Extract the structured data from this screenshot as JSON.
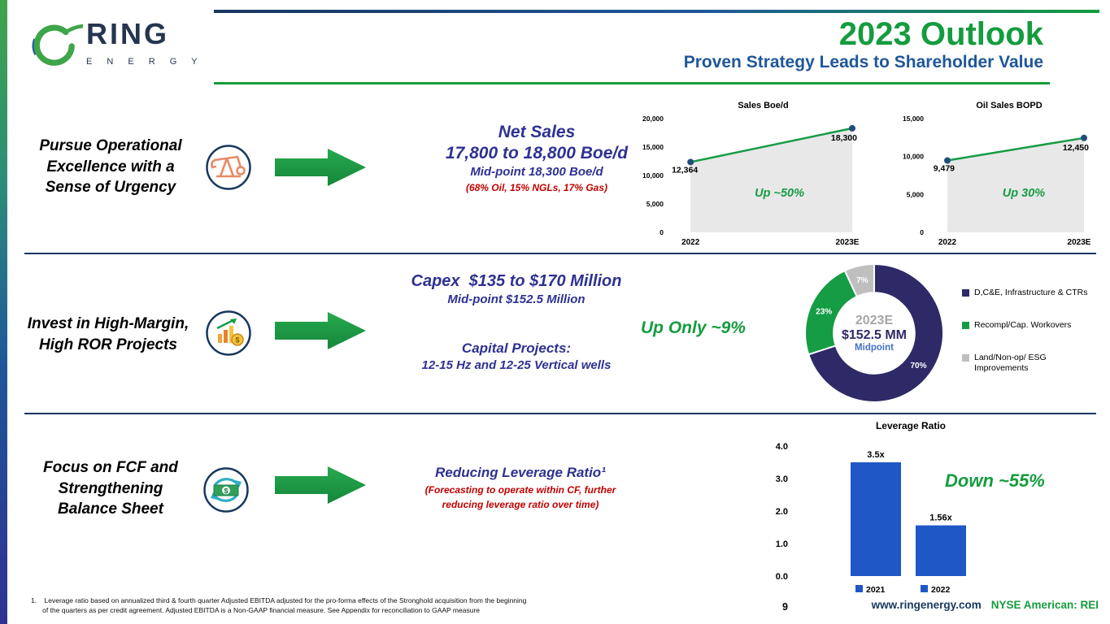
{
  "header": {
    "logo_name": "RING",
    "logo_sub": "E N E R G Y",
    "title": "2023 Outlook",
    "subtitle": "Proven Strategy Leads to Shareholder Value"
  },
  "row1": {
    "label": "Pursue Operational\nExcellence with a\nSense of Urgency",
    "heading1": "Net Sales",
    "heading2": "17,800 to 18,800 Boe/d",
    "sub1": "Mid-point 18,300 Boe/d",
    "sub2": "(68% Oil, 15% NGLs, 17% Gas)"
  },
  "row2": {
    "label": "Invest in High-Margin,\nHigh ROR Projects",
    "heading1": "Capex  $135 to $170 Million",
    "sub1": "Mid-point $152.5 Million",
    "heading2": "Capital Projects:",
    "sub2": "12-15 Hz and 12-25 Vertical wells",
    "annotation": "Up Only ~9%"
  },
  "row3": {
    "label": "Focus on FCF and\nStrengthening\nBalance Sheet",
    "heading1": "Reducing Leverage Ratio¹",
    "sub1": "(Forecasting to operate within CF, further\nreducing leverage ratio over time)",
    "annotation": "Down ~55%"
  },
  "footer": {
    "footnote": "1.    Leverage ratio based on annualized third & fourth quarter Adjusted EBITDA adjusted for the pro-forma effects of the Stronghold acquisition from the beginning\n      of the quarters as per credit agreement. Adjusted EBITDA is a Non-GAAP financial measure. See Appendix for reconciliation to GAAP measure",
    "page_number": "9",
    "website": "www.ringenergy.com",
    "ticker": "NYSE American: REI"
  },
  "colors": {
    "accent_green": "#149C3E",
    "navy": "#17375E",
    "heading_blue": "#2E3192",
    "subtitle_blue": "#1F5799",
    "red": "#C00000"
  },
  "chart_data": [
    {
      "type": "area",
      "title": "Sales Boe/d",
      "categories": [
        "2022",
        "2023E"
      ],
      "values": [
        12364,
        18300
      ],
      "point_labels": [
        "12,364",
        "18,300"
      ],
      "ylim": [
        0,
        20000
      ],
      "yticks": [
        0,
        5000,
        10000,
        15000,
        20000
      ],
      "ytick_labels": [
        "0",
        "5,000",
        "10,000",
        "15,000",
        "20,000"
      ],
      "annotation": "Up ~50%",
      "line_color": "#169C45",
      "marker_color": "#1F4E79",
      "fill_color": "#E8E8E8",
      "grid": false,
      "legend_position": "none"
    },
    {
      "type": "area",
      "title": "Oil Sales BOPD",
      "categories": [
        "2022",
        "2023E"
      ],
      "values": [
        9479,
        12450
      ],
      "point_labels": [
        "9,479",
        "12,450"
      ],
      "ylim": [
        0,
        15000
      ],
      "yticks": [
        0,
        5000,
        10000,
        15000
      ],
      "ytick_labels": [
        "0",
        "5,000",
        "10,000",
        "15,000"
      ],
      "annotation": "Up 30%",
      "line_color": "#169C45",
      "marker_color": "#1F4E79",
      "fill_color": "#E8E8E8",
      "grid": false,
      "legend_position": "none"
    },
    {
      "type": "pie",
      "subtype": "donut",
      "start_angle": "top",
      "direction": "clockwise",
      "slices": [
        {
          "label": "D,C&E, Infrastructure & CTRs",
          "value": 70,
          "pct_label": "70%",
          "color": "#2E2A67"
        },
        {
          "label": "Recompl/Cap. Workovers",
          "value": 23,
          "pct_label": "23%",
          "color": "#169C45"
        },
        {
          "label": "Land/Non-op/ ESG\nImprovements",
          "value": 7,
          "pct_label": "7%",
          "color": "#BFBFBF"
        }
      ],
      "center": {
        "line1": "2023E",
        "line2": "$152.5 MM",
        "line3": "Midpoint"
      },
      "legend_position": "right"
    },
    {
      "type": "bar",
      "title": "Leverage Ratio",
      "categories": [
        "2021",
        "2022"
      ],
      "values": [
        3.5,
        1.56
      ],
      "bar_labels": [
        "3.5x",
        "1.56x"
      ],
      "ylim": [
        0,
        4
      ],
      "yticks": [
        0,
        1,
        2,
        3,
        4
      ],
      "ytick_labels": [
        "0.0",
        "1.0",
        "2.0",
        "3.0",
        "4.0"
      ],
      "bar_color": "#2057C7",
      "legend": [
        "2021",
        "2022"
      ],
      "legend_position": "bottom",
      "grid": false
    }
  ]
}
